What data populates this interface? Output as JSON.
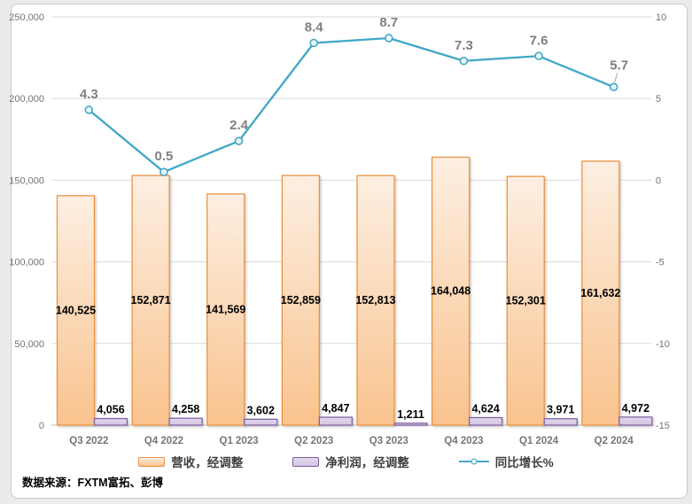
{
  "source_note": "数据来源：FXTM富拓、彭博",
  "chart_data": {
    "type": "combo",
    "title": "",
    "categories": [
      "Q3 2022",
      "Q4 2022",
      "Q1 2023",
      "Q2 2023",
      "Q3 2023",
      "Q4 2023",
      "Q1 2024",
      "Q2 2024"
    ],
    "series": [
      {
        "name": "营收，经调整",
        "type": "bar",
        "axis": "left",
        "values": [
          140525,
          152871,
          141569,
          152859,
          152813,
          164048,
          152301,
          161632
        ],
        "fill_top": "#FDEFE2",
        "fill_bottom": "#F9C38E",
        "border": "#E8923E"
      },
      {
        "name": "净利润，经调整",
        "type": "bar",
        "axis": "left",
        "values": [
          4056,
          4258,
          3602,
          4847,
          1211,
          4624,
          3971,
          4972
        ],
        "fill_top": "#E2D8EE",
        "fill_bottom": "#D3C5E2",
        "border": "#7D60A0"
      },
      {
        "name": "同比增长%",
        "type": "line",
        "axis": "right",
        "values": [
          4.3,
          0.5,
          2.4,
          8.4,
          8.7,
          7.3,
          7.6,
          5.7
        ],
        "color": "#41A7C7",
        "marker_fill": "#EAF6FB"
      }
    ],
    "left_axis": {
      "min": 0,
      "max": 250000,
      "step": 50000
    },
    "right_axis": {
      "min": -15,
      "max": 10,
      "step": 5
    },
    "grid": true,
    "legend_position": "bottom",
    "colors": {
      "gridline": "#D9D9D9",
      "axis_line": "#BFBFBF",
      "leader_line": "#A6A6A6"
    }
  }
}
